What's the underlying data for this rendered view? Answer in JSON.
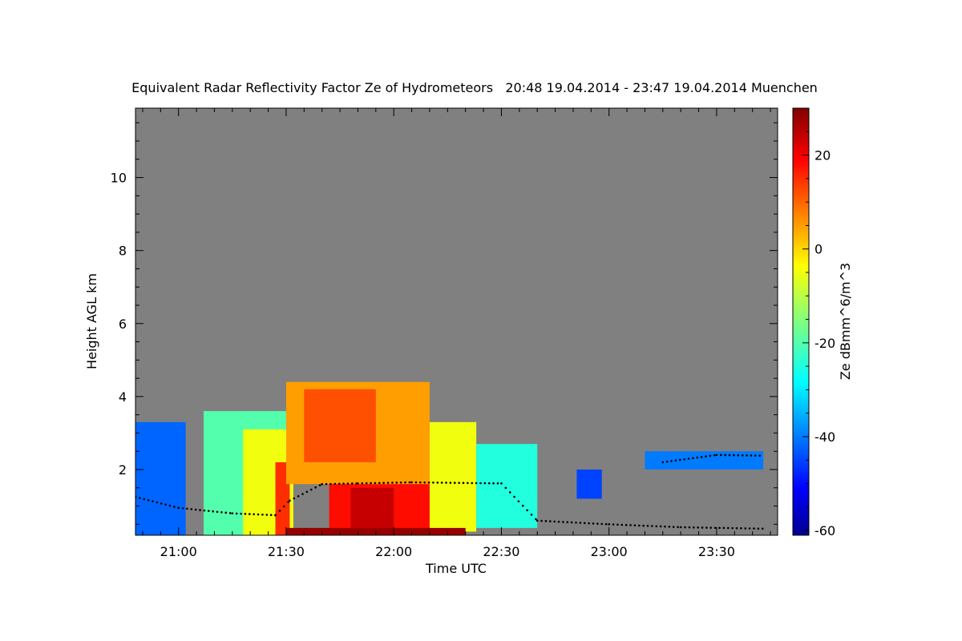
{
  "chart_data": {
    "type": "heatmap",
    "title": "Equivalent Radar Reflectivity Factor Ze of Hydrometeors   20:48 19.04.2014 - 23:47 19.04.2014 Muenchen",
    "xlabel": "Time UTC",
    "ylabel": "Height AGL km",
    "colorbar_label": "Ze dBmm^6/m^3",
    "x_ticks": [
      "21:00",
      "21:30",
      "22:00",
      "22:30",
      "23:00",
      "23:30"
    ],
    "x_tick_minutes": [
      0,
      30,
      60,
      90,
      120,
      150
    ],
    "xlim_minutes_since_2100": [
      -12,
      167
    ],
    "y_ticks": [
      2,
      4,
      6,
      8,
      10
    ],
    "ylim": [
      0.2,
      11.9
    ],
    "colorbar_ticks": [
      20,
      0,
      -20,
      -40,
      -60
    ],
    "colorbar_range": [
      -61,
      30
    ],
    "colormap": "jet",
    "background_color": "#808080",
    "echo_regions": [
      {
        "t0": -12,
        "t1": 2,
        "z0": 0.2,
        "z1": 3.3,
        "ze": -42
      },
      {
        "t0": 7,
        "t1": 30,
        "z0": 0.2,
        "z1": 3.6,
        "ze": -20
      },
      {
        "t0": 18,
        "t1": 32,
        "z0": 0.2,
        "z1": 3.1,
        "ze": -5
      },
      {
        "t0": 27,
        "t1": 31,
        "z0": 0.2,
        "z1": 2.2,
        "ze": 15
      },
      {
        "t0": 30,
        "t1": 70,
        "z0": 1.6,
        "z1": 4.4,
        "ze": 5
      },
      {
        "t0": 35,
        "t1": 55,
        "z0": 2.2,
        "z1": 4.2,
        "ze": 12
      },
      {
        "t0": 42,
        "t1": 70,
        "z0": 0.2,
        "z1": 1.6,
        "ze": 18
      },
      {
        "t0": 48,
        "t1": 60,
        "z0": 0.2,
        "z1": 1.5,
        "ze": 24
      },
      {
        "t0": 70,
        "t1": 83,
        "z0": 0.3,
        "z1": 3.3,
        "ze": -5
      },
      {
        "t0": 83,
        "t1": 100,
        "z0": 0.4,
        "z1": 2.7,
        "ze": -25
      },
      {
        "t0": 111,
        "t1": 118,
        "z0": 1.2,
        "z1": 2.0,
        "ze": -45
      },
      {
        "t0": 130,
        "t1": 163,
        "z0": 2.0,
        "z1": 2.5,
        "ze": -40
      },
      {
        "t0": 30,
        "t1": 80,
        "z0": 0.2,
        "z1": 0.4,
        "ze": 28
      }
    ],
    "cloud_base": [
      {
        "t": -12,
        "z": 1.25
      },
      {
        "t": 0,
        "z": 0.95
      },
      {
        "t": 15,
        "z": 0.8
      },
      {
        "t": 27,
        "z": 0.75
      },
      {
        "t": 31,
        "z": 1.15
      },
      {
        "t": 40,
        "z": 1.6
      },
      {
        "t": 50,
        "z": 1.62
      },
      {
        "t": 65,
        "z": 1.65
      },
      {
        "t": 90,
        "z": 1.62
      },
      {
        "t": 100,
        "z": 0.6
      },
      {
        "t": 120,
        "z": 0.5
      },
      {
        "t": 140,
        "z": 0.42
      },
      {
        "t": 163,
        "z": 0.38
      }
    ],
    "upper_cloud_base": [
      {
        "t": 135,
        "z": 2.2
      },
      {
        "t": 150,
        "z": 2.4
      },
      {
        "t": 163,
        "z": 2.38
      }
    ]
  }
}
